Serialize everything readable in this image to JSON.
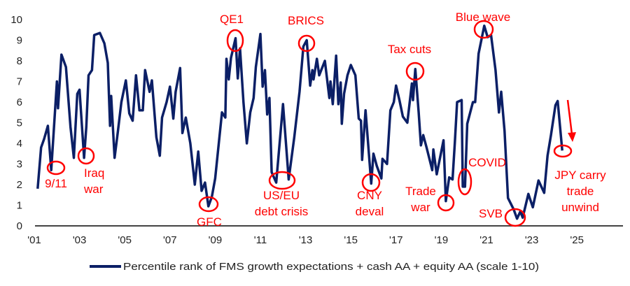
{
  "chart_data": {
    "type": "line",
    "title": "",
    "xlabel": "",
    "ylabel": "",
    "ylim": [
      0,
      10
    ],
    "xlim": [
      2001,
      2027
    ],
    "grid": false,
    "y_ticks": [
      "0",
      "1",
      "2",
      "3",
      "4",
      "5",
      "6",
      "7",
      "8",
      "9",
      "10"
    ],
    "x_ticks": [
      {
        "year": 2001,
        "label": "'01"
      },
      {
        "year": 2003,
        "label": "'03"
      },
      {
        "year": 2005,
        "label": "'05"
      },
      {
        "year": 2007,
        "label": "'07"
      },
      {
        "year": 2009,
        "label": "'09"
      },
      {
        "year": 2011,
        "label": "'11"
      },
      {
        "year": 2013,
        "label": "'13"
      },
      {
        "year": 2015,
        "label": "'15"
      },
      {
        "year": 2017,
        "label": "'17"
      },
      {
        "year": 2019,
        "label": "'19"
      },
      {
        "year": 2021,
        "label": "'21"
      },
      {
        "year": 2023,
        "label": "'23"
      },
      {
        "year": 2025,
        "label": "'25"
      }
    ],
    "legend": {
      "placement": "bottom",
      "entries": [
        "Percentile rank of FMS growth expectations + cash AA + equity AA (scale 1-10)"
      ]
    },
    "series": [
      {
        "name": "Percentile rank of FMS growth expectations + cash AA + equity AA (scale 1-10)",
        "color": "#0b1f66",
        "x": [
          2001.15,
          2001.3,
          2001.43,
          2001.6,
          2001.75,
          2002.0,
          2002.05,
          2002.2,
          2002.4,
          2002.6,
          2002.75,
          2002.9,
          2003.0,
          2003.2,
          2003.3,
          2003.4,
          2003.55,
          2003.65,
          2003.9,
          2004.1,
          2004.25,
          2004.35,
          2004.4,
          2004.55,
          2004.7,
          2004.85,
          2005.05,
          2005.2,
          2005.35,
          2005.5,
          2005.65,
          2005.8,
          2005.9,
          2006.1,
          2006.2,
          2006.4,
          2006.55,
          2006.65,
          2006.85,
          2007.0,
          2007.15,
          2007.25,
          2007.45,
          2007.55,
          2007.7,
          2007.9,
          2008.1,
          2008.25,
          2008.4,
          2008.55,
          2008.7,
          2008.85,
          2009.0,
          2009.3,
          2009.45,
          2009.5,
          2009.6,
          2009.7,
          2009.9,
          2010.0,
          2010.1,
          2010.25,
          2010.4,
          2010.55,
          2010.7,
          2010.8,
          2011.0,
          2011.1,
          2011.2,
          2011.3,
          2011.4,
          2011.5,
          2011.7,
          2012.0,
          2012.25,
          2012.5,
          2012.73,
          2012.9,
          2013.05,
          2013.2,
          2013.3,
          2013.35,
          2013.5,
          2013.6,
          2013.85,
          2014.05,
          2014.1,
          2014.2,
          2014.35,
          2014.45,
          2014.55,
          2014.6,
          2014.7,
          2014.85,
          2015.0,
          2015.2,
          2015.35,
          2015.45,
          2015.5,
          2015.65,
          2015.9,
          2016.0,
          2016.15,
          2016.35,
          2016.4,
          2016.6,
          2016.75,
          2016.9,
          2017.0,
          2017.15,
          2017.3,
          2017.5,
          2017.7,
          2017.75,
          2017.85,
          2018.0,
          2018.1,
          2018.2,
          2018.35,
          2018.6,
          2018.65,
          2018.8,
          2019.1,
          2019.2,
          2019.35,
          2019.5,
          2019.6,
          2019.7,
          2019.9,
          2019.95,
          2020.05,
          2020.15,
          2020.4,
          2020.5,
          2020.65,
          2020.9,
          2021.05,
          2021.2,
          2021.4,
          2021.55,
          2021.65,
          2021.8,
          2021.95,
          2022.2,
          2022.35,
          2022.5,
          2022.6,
          2022.85,
          2023.05,
          2023.3,
          2023.55,
          2023.7,
          2023.85,
          2024.05,
          2024.15,
          2024.35
        ],
        "values": [
          1.8,
          3.8,
          4.2,
          4.85,
          2.7,
          7.0,
          5.7,
          8.3,
          7.7,
          4.8,
          3.3,
          6.4,
          6.6,
          3.3,
          4.8,
          7.3,
          7.55,
          9.25,
          9.35,
          8.85,
          7.9,
          4.85,
          6.3,
          3.3,
          4.6,
          6.0,
          7.05,
          5.45,
          5.1,
          7.3,
          5.6,
          5.6,
          7.55,
          6.5,
          7.05,
          4.3,
          3.4,
          5.25,
          6.0,
          6.75,
          5.2,
          6.5,
          7.65,
          4.5,
          5.25,
          4.0,
          2.0,
          3.6,
          1.7,
          2.1,
          0.95,
          1.4,
          2.3,
          5.5,
          5.25,
          8.1,
          7.1,
          8.15,
          9.1,
          7.15,
          8.6,
          6.0,
          4.0,
          5.5,
          6.2,
          7.7,
          9.3,
          6.75,
          7.55,
          5.4,
          6.2,
          2.6,
          2.1,
          5.9,
          2.25,
          4.3,
          6.5,
          8.7,
          9.0,
          6.8,
          7.55,
          7.1,
          8.1,
          7.3,
          8.0,
          6.2,
          7.0,
          5.9,
          8.25,
          5.9,
          6.95,
          4.95,
          6.4,
          7.3,
          7.8,
          7.3,
          5.2,
          5.1,
          3.2,
          5.6,
          2.05,
          3.5,
          2.9,
          2.3,
          3.25,
          3.0,
          5.6,
          6.0,
          6.8,
          6.1,
          5.3,
          5.0,
          6.9,
          6.1,
          7.6,
          5.5,
          3.9,
          4.4,
          3.8,
          2.7,
          3.7,
          2.5,
          4.15,
          1.2,
          2.35,
          2.25,
          4.05,
          6.0,
          6.1,
          1.9,
          1.9,
          4.95,
          6.0,
          6.0,
          8.35,
          9.7,
          9.15,
          9.25,
          7.55,
          5.5,
          6.5,
          4.6,
          1.35,
          0.8,
          0.35,
          0.7,
          0.4,
          1.55,
          0.9,
          2.2,
          1.6,
          3.4,
          4.4,
          5.85,
          6.05,
          3.65
        ]
      }
    ],
    "annotations": [
      {
        "id": "911",
        "lines": [
          "9/11"
        ]
      },
      {
        "id": "iraq",
        "lines": [
          "Iraq",
          "war"
        ]
      },
      {
        "id": "gfc",
        "lines": [
          "GFC"
        ]
      },
      {
        "id": "qe1",
        "lines": [
          "QE1"
        ]
      },
      {
        "id": "useu",
        "lines": [
          "US/EU",
          "debt crisis"
        ]
      },
      {
        "id": "brics",
        "lines": [
          "BRICS"
        ]
      },
      {
        "id": "cny",
        "lines": [
          "CNY",
          "deval"
        ]
      },
      {
        "id": "taxcuts",
        "lines": [
          "Tax cuts"
        ]
      },
      {
        "id": "tradewar",
        "lines": [
          "Trade",
          "war"
        ]
      },
      {
        "id": "covid",
        "lines": [
          "COVID"
        ]
      },
      {
        "id": "bluewave",
        "lines": [
          "Blue wave"
        ]
      },
      {
        "id": "svb",
        "lines": [
          "SVB"
        ]
      },
      {
        "id": "jpy",
        "lines": [
          "JPY carry",
          "trade",
          "unwind"
        ]
      }
    ],
    "annotation_color": "#ff0000"
  }
}
